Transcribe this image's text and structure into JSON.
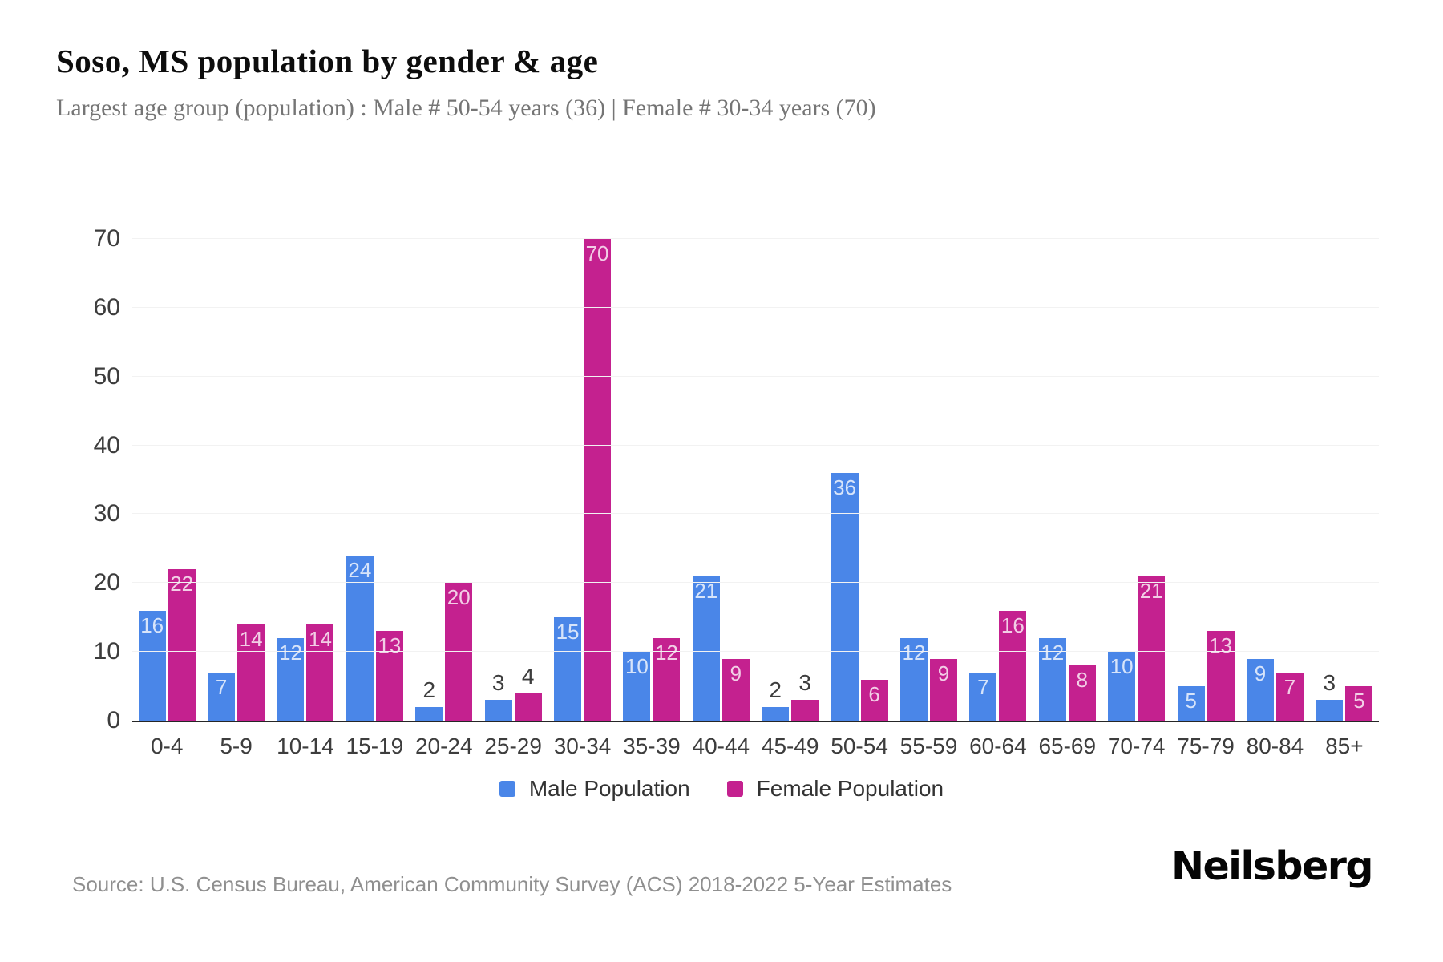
{
  "chart_data": {
    "type": "bar",
    "title": "Soso, MS population by gender & age",
    "subtitle": "Largest age group (population) : Male # 50-54 years (36) | Female # 30-34 years (70)",
    "categories": [
      "0-4",
      "5-9",
      "10-14",
      "15-19",
      "20-24",
      "25-29",
      "30-34",
      "35-39",
      "40-44",
      "45-49",
      "50-54",
      "55-59",
      "60-64",
      "65-69",
      "70-74",
      "75-79",
      "80-84",
      "85+"
    ],
    "series": [
      {
        "name": "Male Population",
        "color": "#4a86e8",
        "values": [
          16,
          7,
          12,
          24,
          2,
          3,
          15,
          10,
          21,
          2,
          36,
          12,
          7,
          12,
          10,
          5,
          9,
          3
        ]
      },
      {
        "name": "Female Population",
        "color": "#c4218f",
        "values": [
          22,
          14,
          14,
          13,
          20,
          4,
          70,
          12,
          9,
          3,
          6,
          9,
          16,
          8,
          21,
          13,
          7,
          5
        ]
      }
    ],
    "xlabel": "",
    "ylabel": "",
    "ylim": [
      0,
      70
    ],
    "yticks": [
      0,
      10,
      20,
      30,
      40,
      50,
      60,
      70
    ],
    "grid": true,
    "legend_position": "bottom"
  },
  "footer": {
    "source": "Source: U.S. Census Bureau, American Community Survey (ACS) 2018-2022 5-Year Estimates",
    "brand": "Neilsberg"
  },
  "colors": {
    "male": "#4a86e8",
    "female": "#c4218f",
    "grid": "#f2f2f2",
    "axis_line": "#262626",
    "tick_label": "#3d3d3d",
    "title": "#0d0d0d",
    "subtitle": "#757575",
    "source": "#8f8f8f"
  }
}
